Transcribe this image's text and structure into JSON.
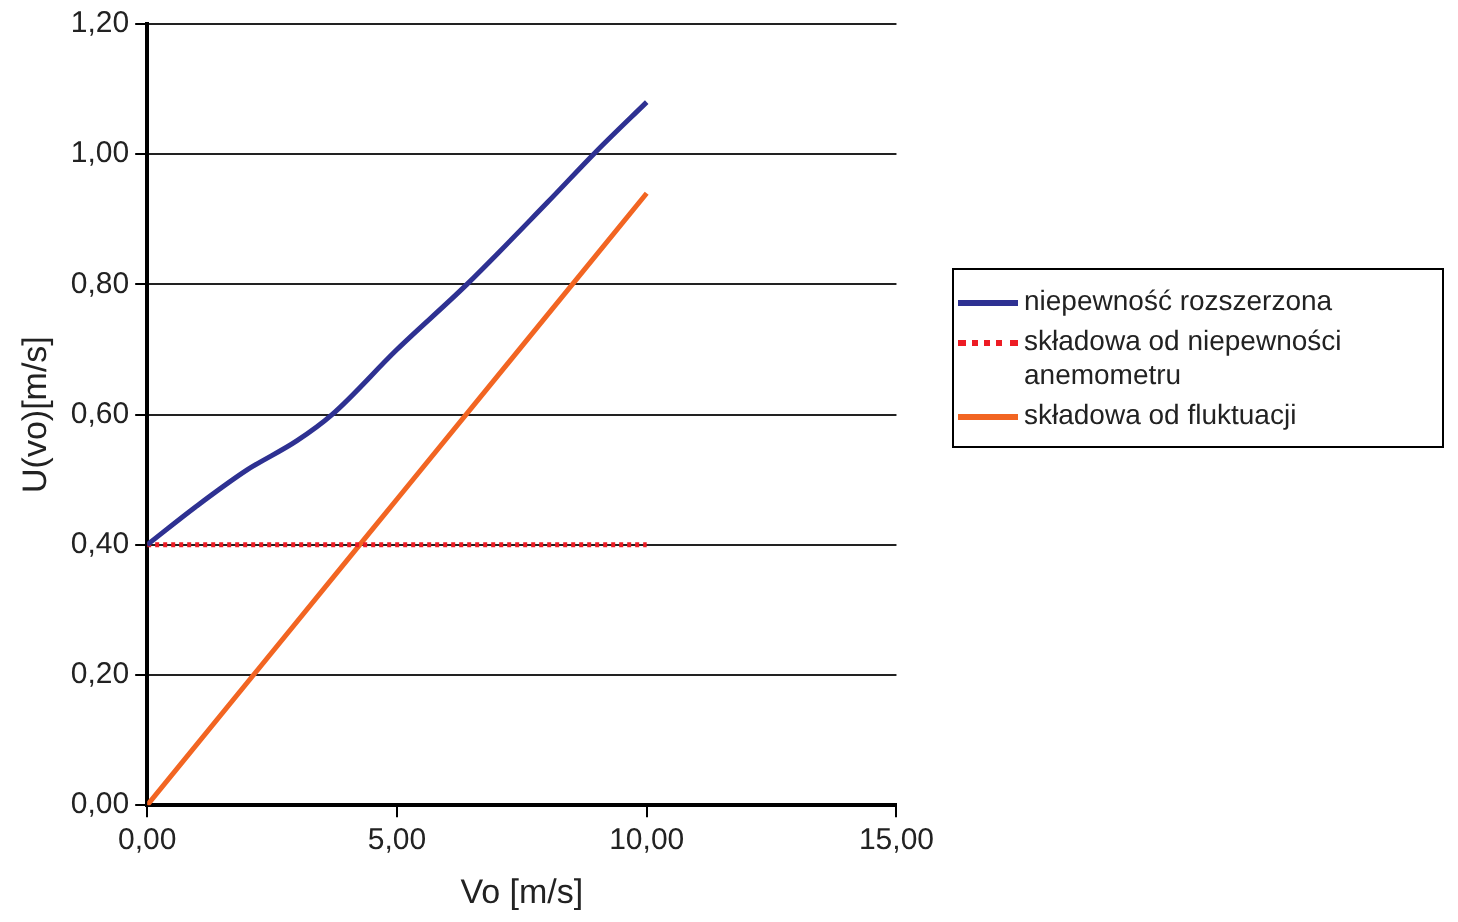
{
  "chart_data": {
    "type": "line",
    "xlabel": "Vo [m/s]",
    "ylabel": "U(vo)[m/s]",
    "xlim": [
      0,
      15
    ],
    "xticks": [
      {
        "value": 0,
        "label": "0,00"
      },
      {
        "value": 5,
        "label": "5,00"
      },
      {
        "value": 10,
        "label": "10,00"
      },
      {
        "value": 15,
        "label": "15,00"
      }
    ],
    "ylim": [
      0,
      1.2
    ],
    "yticks": [
      {
        "value": 0,
        "label": "0,00"
      },
      {
        "value": 0.2,
        "label": "0,20"
      },
      {
        "value": 0.4,
        "label": "0,40"
      },
      {
        "value": 0.6,
        "label": "0,60"
      },
      {
        "value": 0.8,
        "label": "0,80"
      },
      {
        "value": 1.0,
        "label": "1,00"
      },
      {
        "value": 1.2,
        "label": "1,20"
      }
    ],
    "grid": "y",
    "legend": "right",
    "marker": "none",
    "series": [
      {
        "name": "niepewność rozszerzona",
        "color": "#2e3192",
        "line_style": "solid",
        "x": [
          0,
          1,
          2,
          3,
          3.7,
          5,
          6.4,
          8,
          9,
          10
        ],
        "values": [
          0.4,
          0.46,
          0.515,
          0.56,
          0.6,
          0.7,
          0.8,
          0.925,
          1.005,
          1.08
        ]
      },
      {
        "name": "składowa od niepewności anemometru",
        "color": "#ed1c24",
        "line_style": "dotted",
        "x": [
          0,
          10
        ],
        "values": [
          0.4,
          0.4
        ]
      },
      {
        "name": "składowa od fluktuacji",
        "color": "#f26522",
        "line_style": "solid",
        "x": [
          0,
          5,
          10
        ],
        "values": [
          0,
          0.47,
          0.94
        ]
      }
    ]
  }
}
